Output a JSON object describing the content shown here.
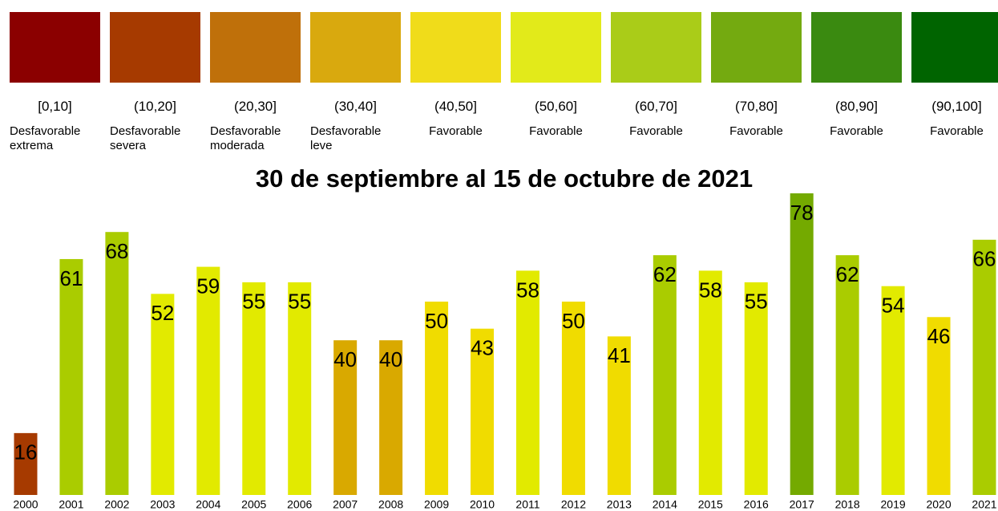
{
  "legend": {
    "items": [
      {
        "color": "#8b0000",
        "range": "[0,10]",
        "label": "Desfavorable extrema"
      },
      {
        "color": "#a63a00",
        "range": "(10,20]",
        "label": "Desfavorable severa"
      },
      {
        "color": "#bf700a",
        "range": "(20,30]",
        "label": "Desfavorable moderada"
      },
      {
        "color": "#d9a90e",
        "range": "(30,40]",
        "label": "Desfavorable leve"
      },
      {
        "color": "#f0dc1a",
        "range": "(40,50]",
        "label": "Favorable"
      },
      {
        "color": "#e2ea1a",
        "range": "(50,60]",
        "label": "Favorable"
      },
      {
        "color": "#aacc18",
        "range": "(60,70]",
        "label": "Favorable"
      },
      {
        "color": "#74aa10",
        "range": "(70,80]",
        "label": "Favorable"
      },
      {
        "color": "#3a8a10",
        "range": "(80,90]",
        "label": "Favorable"
      },
      {
        "color": "#006400",
        "range": "(90,100]",
        "label": "Favorable"
      }
    ]
  },
  "chart_data": {
    "type": "bar",
    "title": "30 de septiembre al 15 de octubre de 2021",
    "categories": [
      "2000",
      "2001",
      "2002",
      "2003",
      "2004",
      "2005",
      "2006",
      "2007",
      "2008",
      "2009",
      "2010",
      "2011",
      "2012",
      "2013",
      "2014",
      "2015",
      "2016",
      "2017",
      "2018",
      "2019",
      "2020",
      "2021"
    ],
    "values": [
      16,
      61,
      68,
      52,
      59,
      55,
      55,
      40,
      40,
      50,
      43,
      58,
      50,
      41,
      62,
      58,
      55,
      78,
      62,
      54,
      46,
      66
    ],
    "colors": [
      "#a63a00",
      "#aacc00",
      "#aacc00",
      "#e2ea00",
      "#e2ea00",
      "#e2ea00",
      "#e2ea00",
      "#d9a900",
      "#d9a900",
      "#f0dc00",
      "#f0dc00",
      "#e2ea00",
      "#f0dc00",
      "#f0dc00",
      "#aacc00",
      "#e2ea00",
      "#e2ea00",
      "#74aa00",
      "#aacc00",
      "#e2ea00",
      "#f0dc00",
      "#aacc00"
    ]
  }
}
